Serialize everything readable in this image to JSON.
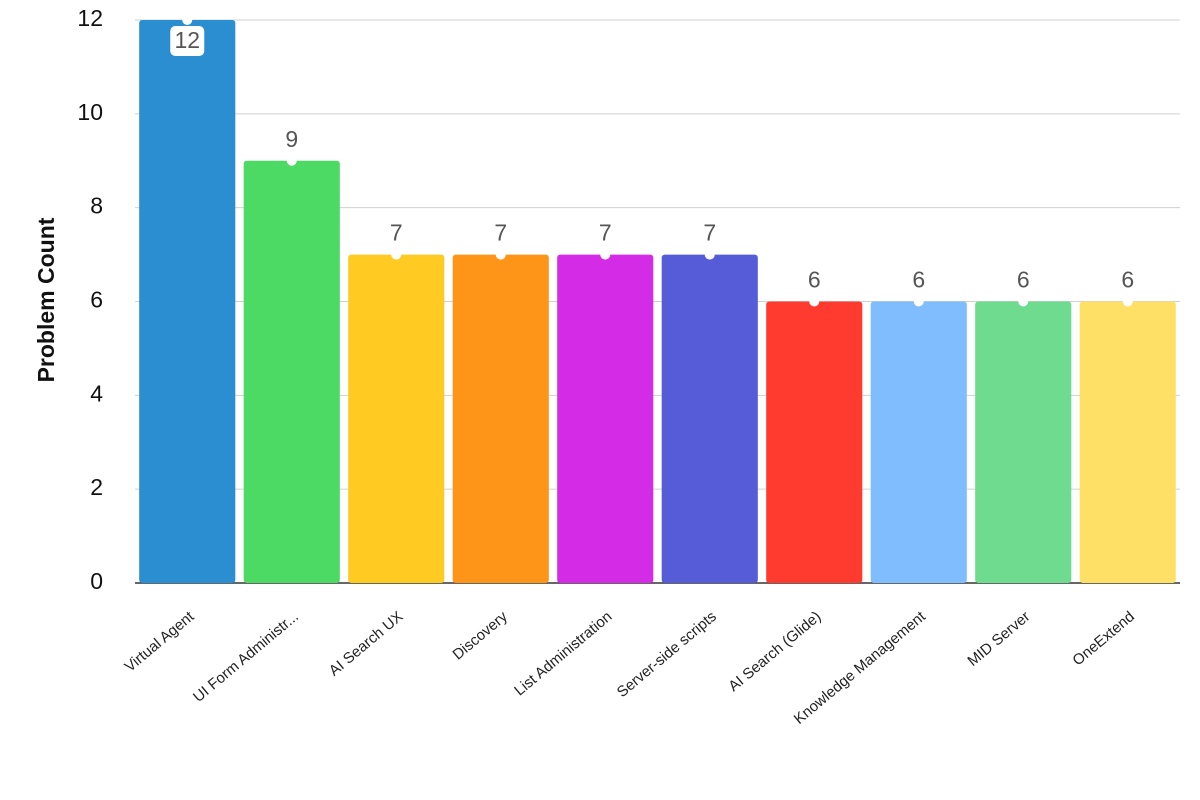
{
  "chart_data": {
    "type": "bar",
    "y_label": "Problem Count",
    "categories": [
      "Virtual Agent",
      "UI Form Administr...",
      "AI Search UX",
      "Discovery",
      "List Administration",
      "Server-side scripts",
      "AI Search (Glide)",
      "Knowledge Management",
      "MID Server",
      "OneExtend"
    ],
    "values": [
      12,
      9,
      7,
      7,
      7,
      7,
      6,
      6,
      6,
      6
    ],
    "colors": [
      "#2a8ed0",
      "#4cd964",
      "#ffca22",
      "#ff9518",
      "#d32be6",
      "#565bd8",
      "#ff3b30",
      "#80bdff",
      "#6edb8f",
      "#ffe066"
    ],
    "ylim": [
      0,
      12
    ],
    "yticks": [
      0,
      2,
      4,
      6,
      8,
      10,
      12
    ],
    "grid": true
  }
}
